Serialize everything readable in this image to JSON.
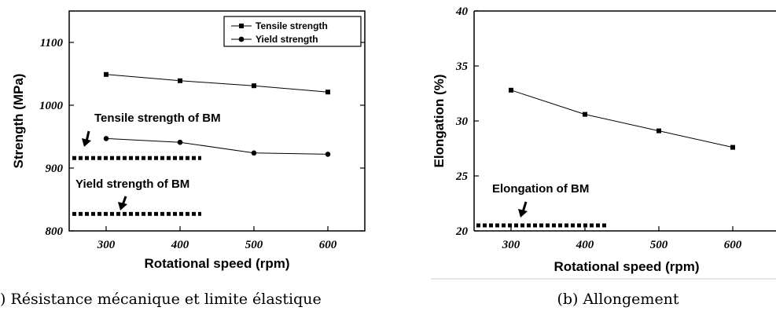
{
  "chart_data": [
    {
      "type": "line",
      "xlabel": "Rotational speed (rpm)",
      "ylabel": "Strength (MPa)",
      "xlim": [
        250,
        650
      ],
      "ylim": [
        800,
        1150
      ],
      "xticks": [
        300,
        400,
        500,
        600
      ],
      "yticks": [
        800,
        900,
        1000,
        1100
      ],
      "legend_position": "top-right",
      "series": [
        {
          "name": "Tensile strength",
          "marker": "square",
          "x": [
            300,
            400,
            500,
            600
          ],
          "values": [
            1049,
            1039,
            1031,
            1021
          ]
        },
        {
          "name": "Yield strength",
          "marker": "circle",
          "x": [
            300,
            400,
            500,
            600
          ],
          "values": [
            947,
            941,
            924,
            922
          ]
        }
      ],
      "annotations": [
        {
          "text": "Tensile strength of BM",
          "value": 916
        },
        {
          "text": "Yield strength of BM",
          "value": 827
        }
      ],
      "caption": ") Résistance mécanique et limite élastique"
    },
    {
      "type": "line",
      "xlabel": "Rotational speed (rpm)",
      "ylabel": "Elongation (%)",
      "xlim": [
        250,
        650
      ],
      "ylim": [
        20,
        40
      ],
      "xticks": [
        300,
        400,
        500,
        600
      ],
      "yticks": [
        20,
        25,
        30,
        35,
        40
      ],
      "series": [
        {
          "marker": "square",
          "x": [
            300,
            400,
            500,
            600
          ],
          "values": [
            32.8,
            30.6,
            29.1,
            27.6
          ]
        }
      ],
      "annotations": [
        {
          "text": "Elongation of BM",
          "value": 20.5
        }
      ],
      "caption": "(b) Allongement"
    }
  ]
}
